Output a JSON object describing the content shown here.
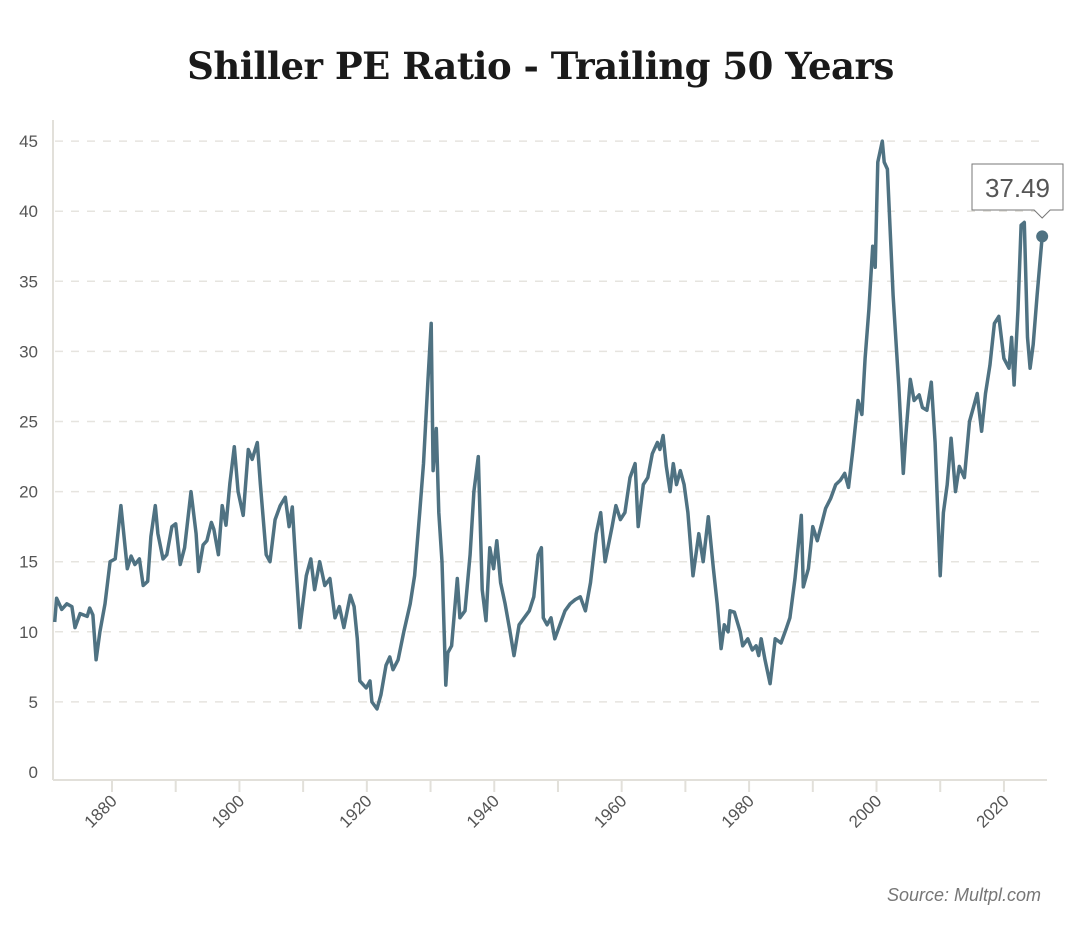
{
  "chart_data": {
    "type": "line",
    "title": "Shiller PE Ratio - Trailing 50 Years",
    "source": "Source: Multpl.com",
    "xlabel": "",
    "ylabel": "",
    "xlim": [
      1871,
      2026
    ],
    "ylim": [
      0,
      45
    ],
    "x_ticks": [
      1880,
      1900,
      1920,
      1940,
      1960,
      1980,
      2000,
      2020
    ],
    "x_minor_ticks": [
      1890,
      1910,
      1930,
      1950,
      1970,
      1990,
      2010
    ],
    "y_ticks": [
      0,
      5,
      10,
      15,
      20,
      25,
      30,
      35,
      40,
      45
    ],
    "grid": "horizontal dashed",
    "line_color": "#4f7282",
    "tooltip": {
      "value": "37.49"
    },
    "x": [
      1871.0,
      1871.3,
      1872.1,
      1872.9,
      1873.7,
      1874.2,
      1875.0,
      1876.1,
      1876.5,
      1877.0,
      1877.5,
      1878.1,
      1878.9,
      1879.7,
      1880.5,
      1881.4,
      1882.4,
      1883.0,
      1883.6,
      1884.3,
      1884.9,
      1885.6,
      1886.1,
      1886.8,
      1887.2,
      1888.0,
      1888.6,
      1889.4,
      1890.0,
      1890.7,
      1891.4,
      1892.4,
      1893.2,
      1893.6,
      1894.3,
      1894.9,
      1895.6,
      1896.0,
      1896.7,
      1897.3,
      1897.9,
      1898.5,
      1899.2,
      1899.8,
      1900.6,
      1901.4,
      1902.0,
      1902.8,
      1903.3,
      1904.2,
      1904.8,
      1905.6,
      1906.4,
      1907.2,
      1907.8,
      1908.3,
      1908.9,
      1909.5,
      1910.5,
      1911.2,
      1911.8,
      1912.6,
      1913.4,
      1914.2,
      1915.0,
      1915.7,
      1916.4,
      1917.4,
      1918.0,
      1918.5,
      1918.9,
      1919.9,
      1920.5,
      1920.8,
      1921.6,
      1922.2,
      1923.0,
      1923.6,
      1924.1,
      1924.9,
      1925.8,
      1926.8,
      1927.5,
      1928.3,
      1928.9,
      1929.6,
      1930.1,
      1930.4,
      1930.9,
      1931.3,
      1931.8,
      1932.4,
      1932.7,
      1933.3,
      1934.2,
      1934.6,
      1935.4,
      1936.2,
      1936.8,
      1937.5,
      1938.1,
      1938.7,
      1939.3,
      1939.9,
      1940.4,
      1941.0,
      1941.7,
      1942.4,
      1943.1,
      1943.9,
      1944.7,
      1945.5,
      1946.2,
      1946.9,
      1947.4,
      1947.7,
      1948.3,
      1948.9,
      1949.5,
      1950.3,
      1951.1,
      1951.9,
      1952.7,
      1953.5,
      1954.3,
      1955.1,
      1956.0,
      1956.7,
      1957.4,
      1958.5,
      1959.1,
      1959.8,
      1960.5,
      1961.3,
      1962.1,
      1962.6,
      1963.4,
      1964.1,
      1964.8,
      1965.6,
      1966.0,
      1966.5,
      1967.0,
      1967.6,
      1968.1,
      1968.6,
      1969.2,
      1969.8,
      1970.4,
      1971.2,
      1972.1,
      1972.8,
      1973.6,
      1974.4,
      1975.0,
      1975.6,
      1976.1,
      1976.7,
      1977.0,
      1977.7,
      1978.6,
      1979.0,
      1979.8,
      1980.5,
      1981.1,
      1981.5,
      1981.9,
      1982.5,
      1983.3,
      1984.1,
      1985.0,
      1985.8,
      1986.4,
      1987.2,
      1988.2,
      1988.5,
      1989.3,
      1990.0,
      1990.7,
      1991.4,
      1992.0,
      1992.8,
      1993.6,
      1994.3,
      1995.0,
      1995.6,
      1996.3,
      1997.1,
      1997.7,
      1998.2,
      1998.8,
      1999.4,
      1999.8,
      2000.2,
      2000.9,
      2001.2,
      2001.7,
      2002.6,
      2003.5,
      2004.2,
      2004.6,
      2005.3,
      2005.9,
      2006.7,
      2007.2,
      2007.9,
      2008.6,
      2009.2,
      2010.0,
      2010.5,
      2011.1,
      2011.7,
      2012.4,
      2013.0,
      2013.8,
      2014.6,
      2015.2,
      2015.8,
      2016.5,
      2017.1,
      2017.8,
      2018.5,
      2019.2,
      2020.0,
      2020.8,
      2021.2,
      2021.6,
      2022.2,
      2022.7,
      2023.2,
      2023.7,
      2024.1,
      2024.6,
      2025.2,
      2026.0
    ],
    "y": [
      10.7,
      12.4,
      11.6,
      12.0,
      11.8,
      10.3,
      11.3,
      11.1,
      11.7,
      11.2,
      8.0,
      10.0,
      12.0,
      15.0,
      15.2,
      19.0,
      14.5,
      15.4,
      14.8,
      15.2,
      13.3,
      13.6,
      16.8,
      19.0,
      17.0,
      15.2,
      15.5,
      17.5,
      17.7,
      14.8,
      16.0,
      20.0,
      17.0,
      14.3,
      16.2,
      16.5,
      17.8,
      17.3,
      15.5,
      19.0,
      17.6,
      20.6,
      23.2,
      20.0,
      18.3,
      23.0,
      22.3,
      23.5,
      20.5,
      15.5,
      15.0,
      18.0,
      19.0,
      19.6,
      17.5,
      18.9,
      14.5,
      10.3,
      14.0,
      15.2,
      13.0,
      15.0,
      13.3,
      13.8,
      11.0,
      11.8,
      10.3,
      12.6,
      11.8,
      9.5,
      6.5,
      6.0,
      6.5,
      5.0,
      4.5,
      5.5,
      7.6,
      8.2,
      7.3,
      8.0,
      10.0,
      12.0,
      14.0,
      18.5,
      22.0,
      28.0,
      32.0,
      21.5,
      24.5,
      18.5,
      15.0,
      6.2,
      8.5,
      9.0,
      13.8,
      11.0,
      11.5,
      15.5,
      20.0,
      22.5,
      13.0,
      10.8,
      16.0,
      14.5,
      16.5,
      13.5,
      12.0,
      10.2,
      8.3,
      10.5,
      11.0,
      11.5,
      12.5,
      15.5,
      16.0,
      11.0,
      10.5,
      11.0,
      9.5,
      10.5,
      11.5,
      12.0,
      12.3,
      12.5,
      11.5,
      13.5,
      17.0,
      18.5,
      15.0,
      17.5,
      19.0,
      18.0,
      18.5,
      21.0,
      22.0,
      17.5,
      20.5,
      21.0,
      22.7,
      23.5,
      23.0,
      24.0,
      21.8,
      20.0,
      22.0,
      20.5,
      21.5,
      20.5,
      18.5,
      14.0,
      17.0,
      15.0,
      18.2,
      14.5,
      12.0,
      8.8,
      10.5,
      10.0,
      11.5,
      11.4,
      10.0,
      9.0,
      9.5,
      8.7,
      9.0,
      8.3,
      9.5,
      8.0,
      6.3,
      9.5,
      9.2,
      10.2,
      11.0,
      13.8,
      18.3,
      13.2,
      14.5,
      17.5,
      16.5,
      17.7,
      18.8,
      19.5,
      20.5,
      20.8,
      21.3,
      20.3,
      23.0,
      26.5,
      25.5,
      29.5,
      33.0,
      37.5,
      36.0,
      43.5,
      45.0,
      43.5,
      43.0,
      34.0,
      27.5,
      21.3,
      24.0,
      28.0,
      26.5,
      26.9,
      26.0,
      25.8,
      27.8,
      23.5,
      14.0,
      18.5,
      20.5,
      23.8,
      20.0,
      21.8,
      21.0,
      25.0,
      26.0,
      27.0,
      24.3,
      27.0,
      29.0,
      32.0,
      32.5,
      29.5,
      28.8,
      31.0,
      27.6,
      33.0,
      39.0,
      39.2,
      31.0,
      28.8,
      30.5,
      34.0,
      38.2
    ]
  }
}
